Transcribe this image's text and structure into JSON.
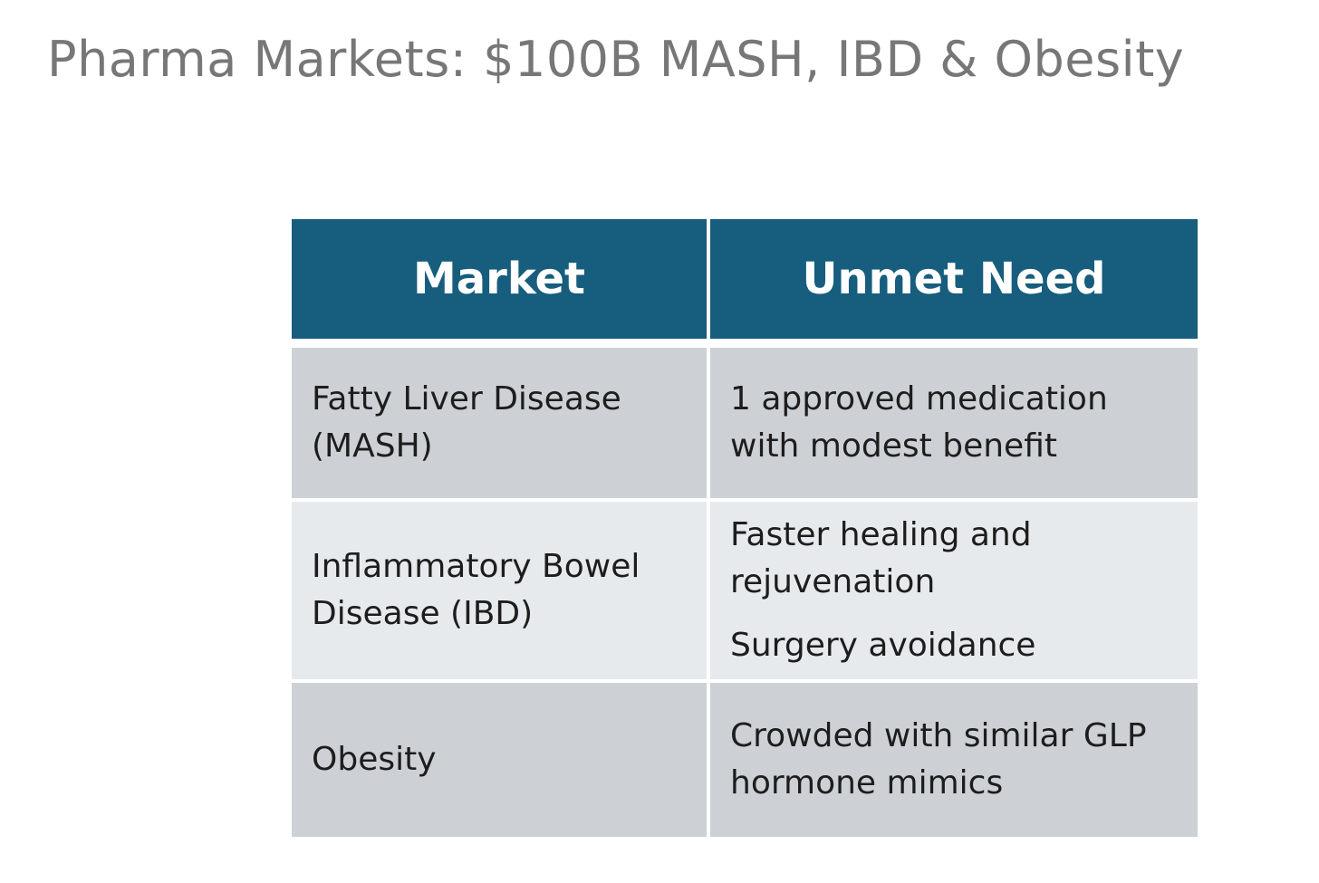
{
  "title": "Pharma Markets: $100B MASH, IBD & Obesity",
  "table": {
    "headers": [
      "Market",
      "Unmet Need"
    ],
    "rows": [
      {
        "market": [
          "Fatty Liver Disease",
          "(MASH)"
        ],
        "need": [
          "1 approved medication",
          "with modest benefit"
        ]
      },
      {
        "market": [
          "Inflammatory Bowel",
          "Disease (IBD)"
        ],
        "need": [
          "Faster healing and",
          "rejuvenation",
          "Surgery avoidance"
        ]
      },
      {
        "market": [
          "Obesity"
        ],
        "need": [
          "Crowded with similar GLP",
          "hormone mimics"
        ]
      }
    ]
  },
  "colors": {
    "header_bg": "#175d7d",
    "row_dark": "#cdd1d6",
    "row_light": "#e7eaed",
    "title": "#777777"
  }
}
